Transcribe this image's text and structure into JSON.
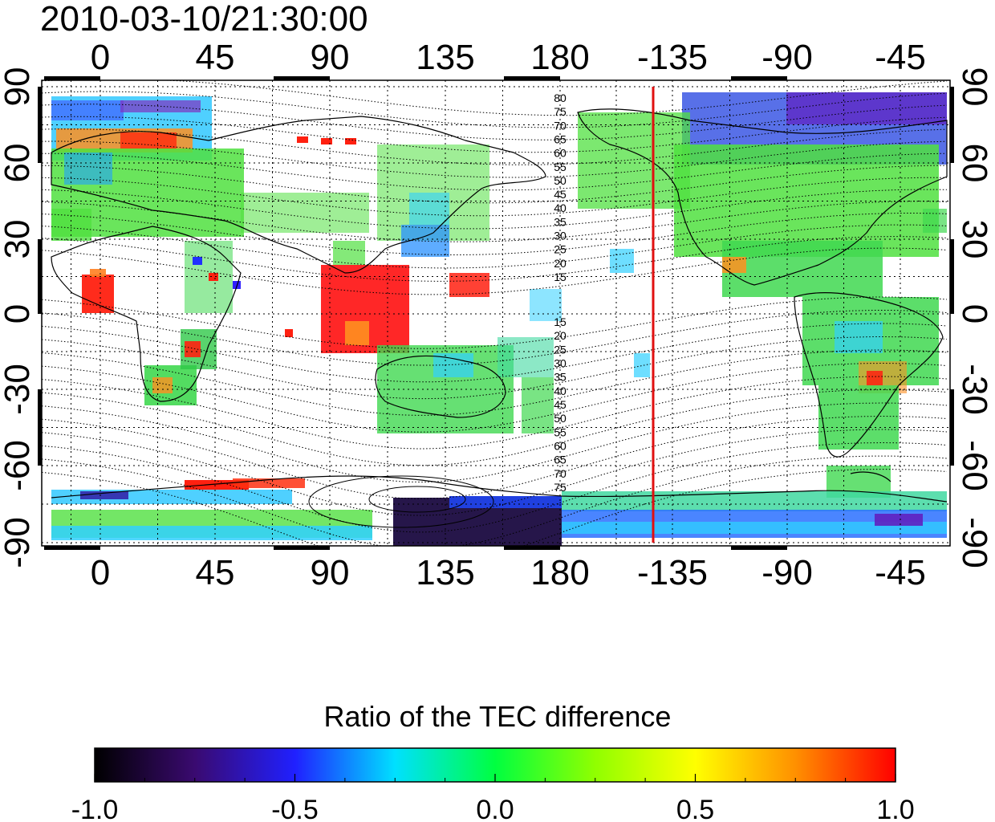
{
  "title": "2010-03-10/21:30:00",
  "map": {
    "lon_ticks": [
      "0",
      "45",
      "90",
      "135",
      "180",
      "-135",
      "-90",
      "-45"
    ],
    "lat_ticks_left": [
      "90",
      "60",
      "30",
      "0",
      "-30",
      "-60",
      "-90"
    ],
    "lat_ticks_right": [
      "90",
      "60",
      "30",
      "0",
      "-30",
      "-60",
      "-90"
    ],
    "contour_labels_north": [
      "80",
      "75",
      "70",
      "65",
      "60",
      "55",
      "50",
      "45",
      "40",
      "35",
      "30",
      "25",
      "20",
      "15"
    ],
    "contour_labels_south": [
      "15",
      "20",
      "25",
      "30",
      "35",
      "40",
      "45",
      "50",
      "55",
      "60",
      "65",
      "70",
      "75"
    ],
    "terminator_color": "#e01010",
    "terminator_longitude": -135
  },
  "colorbar": {
    "title": "Ratio of the TEC difference",
    "ticks": [
      "-1.0",
      "-0.5",
      "0.0",
      "0.5",
      "1.0"
    ],
    "range": [
      -1.0,
      1.0
    ],
    "colors": [
      "#000000",
      "#3a0a70",
      "#2020ff",
      "#00e0ff",
      "#00ff40",
      "#90ff00",
      "#ffff00",
      "#ff9000",
      "#ff0000"
    ]
  }
}
